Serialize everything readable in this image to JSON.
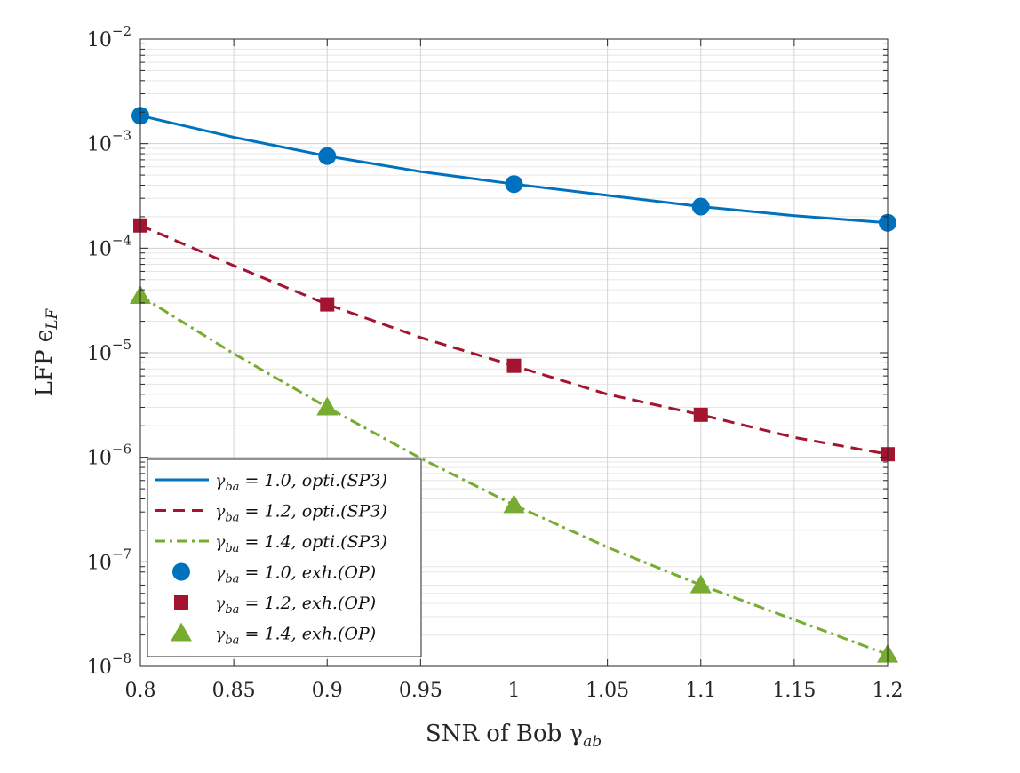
{
  "chart_data": {
    "type": "line",
    "y_scale": "log",
    "xlabel": "SNR of Bob γ",
    "xlabel_sub": "ab",
    "ylabel": "LFP ϵ",
    "ylabel_sub": "LF",
    "xlim": [
      0.8,
      1.2
    ],
    "ylim": [
      1e-08,
      0.01
    ],
    "x_ticks": [
      "0.8",
      "0.85",
      "0.9",
      "0.95",
      "1",
      "1.05",
      "1.1",
      "1.15",
      "1.2"
    ],
    "y_ticks": [
      {
        "base": "10",
        "exp": "−8"
      },
      {
        "base": "10",
        "exp": "−7"
      },
      {
        "base": "10",
        "exp": "−6"
      },
      {
        "base": "10",
        "exp": "−5"
      },
      {
        "base": "10",
        "exp": "−4"
      },
      {
        "base": "10",
        "exp": "−3"
      },
      {
        "base": "10",
        "exp": "−2"
      }
    ],
    "grid": true,
    "legend_position": "bottom-left",
    "series": [
      {
        "name": "γba = 1.0, opti.(SP3)",
        "legend": {
          "sym": "γ",
          "sub": "ba",
          "rest": " = 1.0, opti.(SP3)"
        },
        "kind": "line",
        "style": "solid",
        "color": "#0072BD",
        "x": [
          0.8,
          0.85,
          0.9,
          0.95,
          1.0,
          1.05,
          1.1,
          1.15,
          1.2
        ],
        "y": [
          0.00185,
          0.00115,
          0.00076,
          0.00054,
          0.00041,
          0.00032,
          0.00025,
          0.000205,
          0.000175
        ]
      },
      {
        "name": "γba = 1.2, opti.(SP3)",
        "legend": {
          "sym": "γ",
          "sub": "ba",
          "rest": " = 1.2, opti.(SP3)"
        },
        "kind": "line",
        "style": "dashed",
        "color": "#A2142F",
        "x": [
          0.8,
          0.85,
          0.9,
          0.95,
          1.0,
          1.05,
          1.1,
          1.15,
          1.2
        ],
        "y": [
          0.000165,
          6.8e-05,
          2.9e-05,
          1.4e-05,
          7.5e-06,
          4e-06,
          2.55e-06,
          1.55e-06,
          1.07e-06
        ]
      },
      {
        "name": "γba = 1.4, opti.(SP3)",
        "legend": {
          "sym": "γ",
          "sub": "ba",
          "rest": " = 1.4, opti.(SP3)"
        },
        "kind": "line",
        "style": "dashdot",
        "color": "#77AC30",
        "x": [
          0.8,
          0.85,
          0.9,
          0.95,
          1.0,
          1.05,
          1.1,
          1.15,
          1.2
        ],
        "y": [
          3.5e-05,
          9.8e-06,
          3e-06,
          9.8e-07,
          3.5e-07,
          1.38e-07,
          6e-08,
          2.8e-08,
          1.3e-08
        ]
      },
      {
        "name": "γba = 1.0, exh.(OP)",
        "legend": {
          "sym": "γ",
          "sub": "ba",
          "rest": " = 1.0, exh.(OP)"
        },
        "kind": "marker",
        "marker": "circle",
        "color": "#0072BD",
        "x": [
          0.8,
          0.9,
          1.0,
          1.1,
          1.2
        ],
        "y": [
          0.00185,
          0.00076,
          0.00041,
          0.00025,
          0.000175
        ]
      },
      {
        "name": "γba = 1.2, exh.(OP)",
        "legend": {
          "sym": "γ",
          "sub": "ba",
          "rest": " = 1.2, exh.(OP)"
        },
        "kind": "marker",
        "marker": "square",
        "color": "#A2142F",
        "x": [
          0.8,
          0.9,
          1.0,
          1.1,
          1.2
        ],
        "y": [
          0.000165,
          2.9e-05,
          7.5e-06,
          2.55e-06,
          1.07e-06
        ]
      },
      {
        "name": "γba = 1.4, exh.(OP)",
        "legend": {
          "sym": "γ",
          "sub": "ba",
          "rest": " = 1.4, exh.(OP)"
        },
        "kind": "marker",
        "marker": "triangle",
        "color": "#77AC30",
        "x": [
          0.8,
          0.9,
          1.0,
          1.1,
          1.2
        ],
        "y": [
          3.5e-05,
          3e-06,
          3.5e-07,
          6e-08,
          1.3e-08
        ]
      }
    ]
  }
}
